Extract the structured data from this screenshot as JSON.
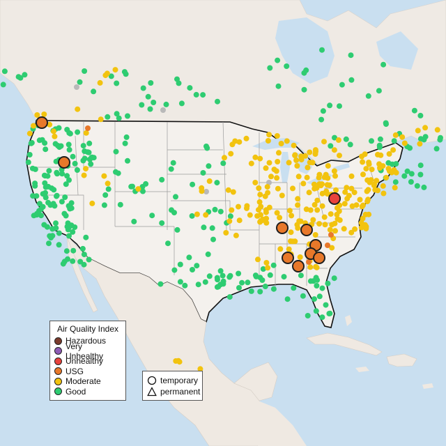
{
  "legend": {
    "title": "Air Quality Index",
    "categories": [
      {
        "label": "Hazardous",
        "color": "#7b3b2c"
      },
      {
        "label": "Very Unhealthy",
        "color": "#8e5bb5"
      },
      {
        "label": "Unhealthy",
        "color": "#e8423c"
      },
      {
        "label": "USG",
        "color": "#e8782a"
      },
      {
        "label": "Moderate",
        "color": "#f2c30f"
      },
      {
        "label": "Good",
        "color": "#2ecc71"
      }
    ]
  },
  "shape_legend": {
    "temporary_label": "temporary",
    "permanent_label": "permanent"
  },
  "colors": {
    "water": "#c9dff0",
    "land": "#f1ece6",
    "usa": "#f4f1ed",
    "mexico": "#f0eae3",
    "good": "#2ecc71",
    "moderate": "#f2c30f",
    "usg": "#e8782a",
    "unhealthy": "#e8423c",
    "no_data": "#b9b9b9"
  }
}
